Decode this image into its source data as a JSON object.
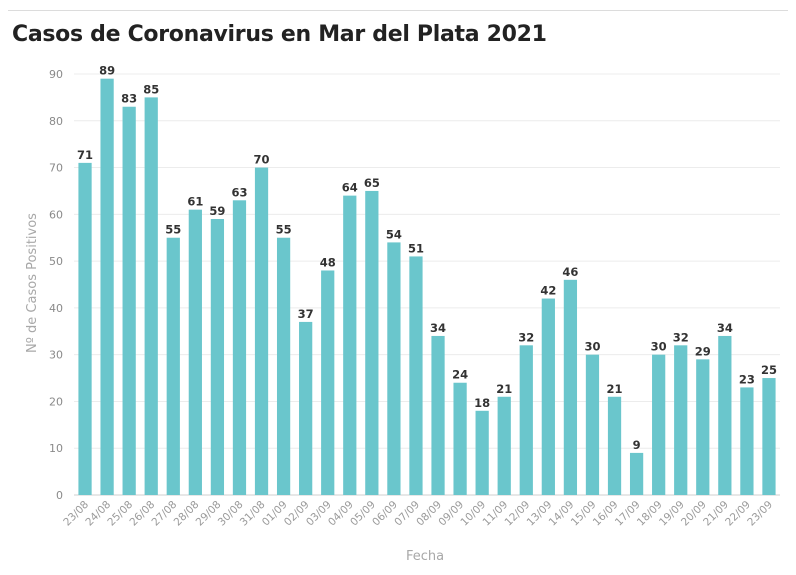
{
  "title": "Casos de Coronavirus en Mar del Plata 2021",
  "chart_data": {
    "type": "bar",
    "title": "Casos de Coronavirus en Mar del Plata 2021",
    "xlabel": "Fecha",
    "ylabel": "Nº de Casos Positivos",
    "ylim": [
      0,
      90
    ],
    "yticks": [
      0,
      10,
      20,
      30,
      40,
      50,
      60,
      70,
      80,
      90
    ],
    "grid": true,
    "bar_color": "#6ac6cc",
    "categories": [
      "23/08",
      "24/08",
      "25/08",
      "26/08",
      "27/08",
      "28/08",
      "29/08",
      "30/08",
      "31/08",
      "01/09",
      "02/09",
      "03/09",
      "04/09",
      "05/09",
      "06/09",
      "07/09",
      "08/09",
      "09/09",
      "10/09",
      "11/09",
      "12/09",
      "13/09",
      "14/09",
      "15/09",
      "16/09",
      "17/09",
      "18/09",
      "19/09",
      "20/09",
      "21/09",
      "22/09",
      "23/09"
    ],
    "values": [
      71,
      89,
      83,
      85,
      55,
      61,
      59,
      63,
      70,
      55,
      37,
      48,
      64,
      65,
      54,
      51,
      34,
      24,
      18,
      21,
      32,
      42,
      46,
      30,
      21,
      9,
      30,
      32,
      29,
      34,
      23,
      25
    ]
  }
}
